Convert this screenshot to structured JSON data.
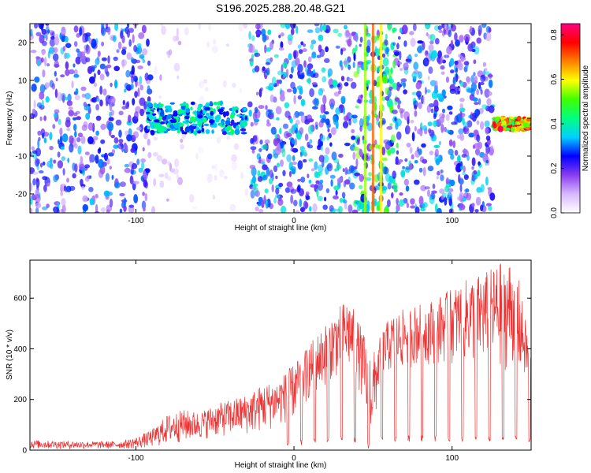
{
  "title": "S196.2025.288.20.48.G21",
  "chart_data": [
    {
      "type": "heatmap",
      "xlabel": "Height of straight line (km)",
      "ylabel": "Frequency (Hz)",
      "xlim": [
        -167,
        150
      ],
      "ylim": [
        -25,
        25
      ],
      "x_ticks": [
        -100,
        0,
        100
      ],
      "x_tick_labels": [
        "-100",
        "0",
        "100"
      ],
      "y_ticks": [
        -20,
        -10,
        0,
        10,
        20
      ],
      "y_tick_labels": [
        "-20",
        "-10",
        "0",
        "10",
        "20"
      ],
      "grid": false,
      "colorbar": {
        "label": "Normalized spectral amplitude",
        "range": [
          0,
          0.85
        ],
        "ticks": [
          0.0,
          0.2,
          0.4,
          0.6,
          0.8
        ],
        "tick_labels": [
          "0.0",
          "0.2",
          "0.4",
          "0.6",
          "0.8"
        ],
        "colors": [
          "#ffffff",
          "#d7b8ff",
          "#8a3cf0",
          "#0000ff",
          "#00d0ff",
          "#00ff80",
          "#40ff00",
          "#ffff00",
          "#ff8000",
          "#ff0000",
          "#ff0080"
        ]
      },
      "noise_regions": [
        [
          -167,
          -90,
          0.35
        ],
        [
          -90,
          -70,
          0.12
        ],
        [
          -70,
          -28,
          0.05
        ],
        [
          -28,
          38,
          0.4
        ],
        [
          38,
          66,
          0.55
        ],
        [
          66,
          126,
          0.38
        ],
        [
          126,
          150,
          0.0
        ]
      ],
      "features": [
        {
          "x_range": [
            -93,
            -30
          ],
          "freq_center": 0,
          "freq_halfwidth": 4,
          "amplitude": 0.45,
          "label": "strong signal band"
        },
        {
          "x_range": [
            126,
            150
          ],
          "freq_center": -1.5,
          "freq_halfwidth": 1.5,
          "amplitude": 0.85,
          "label": "strong narrow signal"
        }
      ],
      "vertical_stripes": [
        {
          "x": 45,
          "amplitude": 0.55
        },
        {
          "x": 50,
          "amplitude": 0.7
        },
        {
          "x": 55,
          "amplitude": 0.6
        }
      ]
    },
    {
      "type": "line",
      "xlabel": "Height of straight line (km)",
      "ylabel": "SNR (10 * v/v)",
      "xlim": [
        -167,
        150
      ],
      "ylim": [
        0,
        750
      ],
      "x_ticks": [
        -100,
        0,
        100
      ],
      "x_tick_labels": [
        "-100",
        "0",
        "100"
      ],
      "y_ticks": [
        0,
        200,
        400,
        600
      ],
      "y_tick_labels": [
        "0",
        "200",
        "400",
        "600"
      ],
      "grid": false,
      "color": "#ee3333",
      "series": [
        {
          "name": "SNR envelope",
          "x": [
            -167,
            -140,
            -110,
            -100,
            -90,
            -80,
            -70,
            -60,
            -50,
            -40,
            -30,
            -20,
            -10,
            0,
            10,
            20,
            30,
            35,
            40,
            45,
            50,
            55,
            60,
            70,
            80,
            90,
            100,
            110,
            120,
            130,
            140,
            150
          ],
          "low": [
            5,
            5,
            5,
            5,
            10,
            20,
            30,
            40,
            50,
            55,
            60,
            70,
            90,
            120,
            200,
            250,
            300,
            300,
            280,
            100,
            20,
            300,
            300,
            320,
            330,
            340,
            340,
            340,
            330,
            320,
            300,
            250
          ],
          "high": [
            40,
            35,
            35,
            50,
            80,
            140,
            160,
            150,
            180,
            200,
            220,
            260,
            280,
            340,
            420,
            500,
            580,
            600,
            520,
            450,
            380,
            460,
            520,
            560,
            580,
            600,
            640,
            680,
            700,
            740,
            760,
            380
          ]
        }
      ]
    }
  ]
}
